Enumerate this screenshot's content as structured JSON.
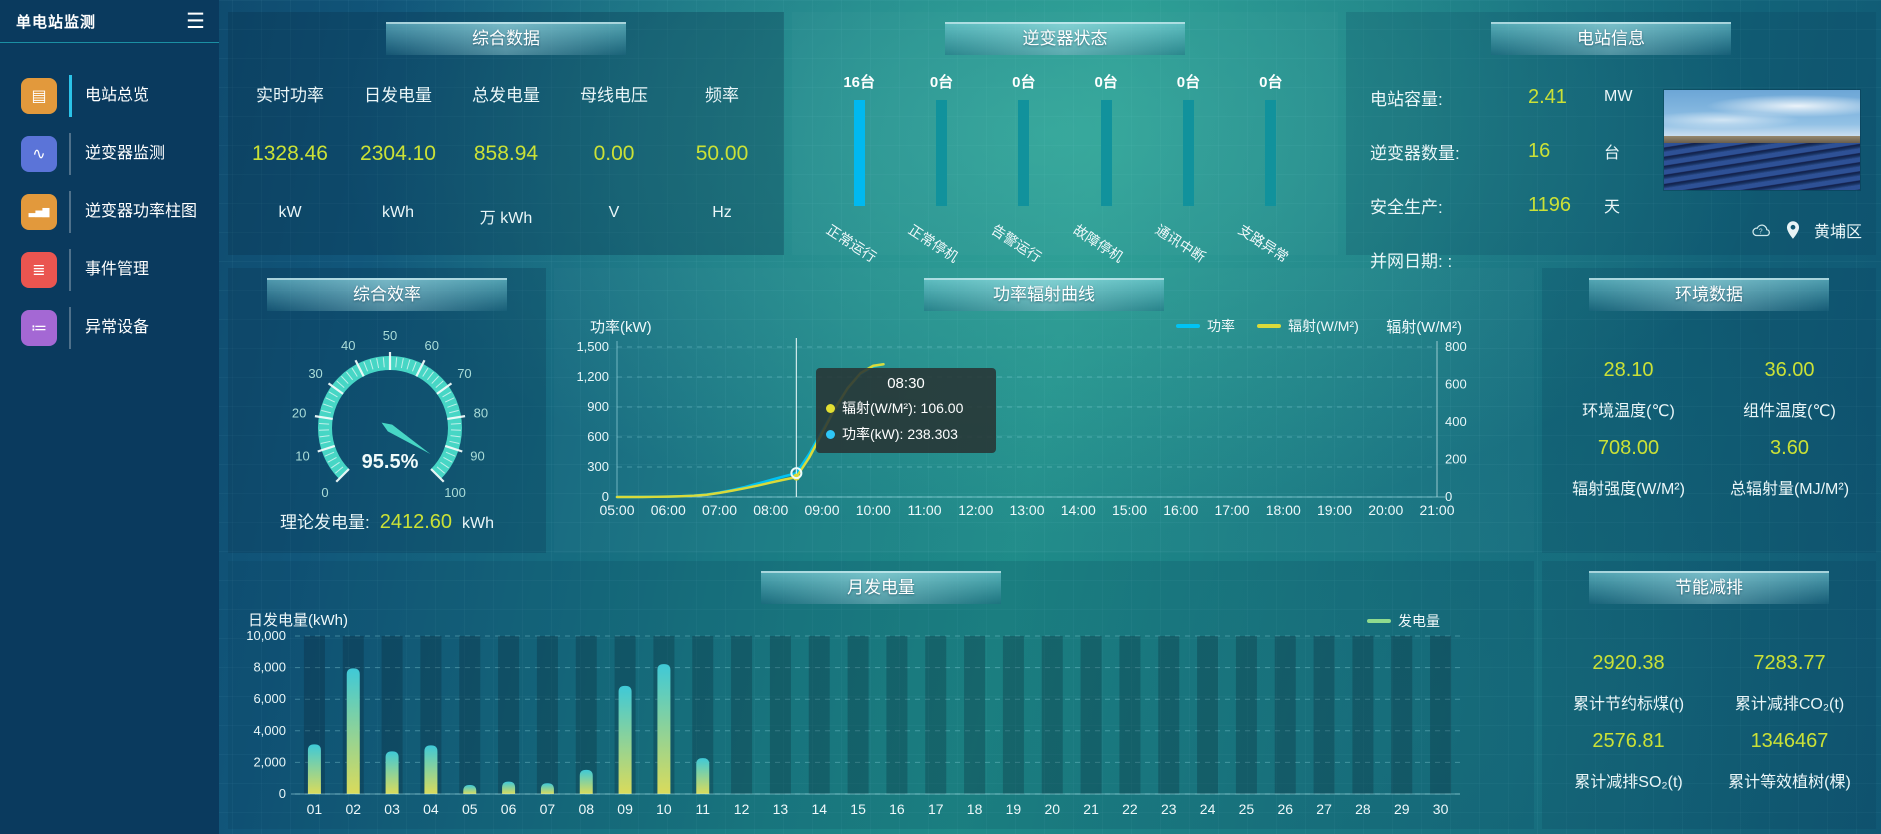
{
  "colors": {
    "accent_yellow": "#cbe136",
    "accent_cyan": "#00b9f0",
    "teal_bar": "#11929c",
    "gauge": "#47d6c5",
    "bar_top": "#3fc9d7",
    "bar_bottom": "#dadb5b",
    "legend_green": "#90db8e"
  },
  "sidebar": {
    "title": "单电站监测",
    "menu_icon": "☰",
    "items": [
      {
        "label": "电站总览",
        "glyph": "▤",
        "color": "#e2993c",
        "active": true
      },
      {
        "label": "逆变器监测",
        "glyph": "∿",
        "color": "#5b74d8",
        "active": false
      },
      {
        "label": "逆变器功率柱图",
        "glyph": "▃▅▇",
        "color": "#e2993c",
        "active": false
      },
      {
        "label": "事件管理",
        "glyph": "≣",
        "color": "#ea5550",
        "active": false
      },
      {
        "label": "异常设备",
        "glyph": "≔",
        "color": "#a468d4",
        "active": false
      }
    ]
  },
  "summary": {
    "title": "综合数据",
    "metrics": [
      {
        "label": "实时功率",
        "value": "1328.46",
        "unit": "kW"
      },
      {
        "label": "日发电量",
        "value": "2304.10",
        "unit": "kWh"
      },
      {
        "label": "总发电量",
        "value": "858.94",
        "unit": "万 kWh"
      },
      {
        "label": "母线电压",
        "value": "0.00",
        "unit": "V"
      },
      {
        "label": "频率",
        "value": "50.00",
        "unit": "Hz"
      }
    ]
  },
  "inverter_status": {
    "title": "逆变器状态",
    "items": [
      {
        "count": "16台",
        "label": "正常运行",
        "color": "#00b9f0"
      },
      {
        "count": "0台",
        "label": "正常停机",
        "color": "#11929c"
      },
      {
        "count": "0台",
        "label": "告警运行",
        "color": "#11929c"
      },
      {
        "count": "0台",
        "label": "故障停机",
        "color": "#11929c"
      },
      {
        "count": "0台",
        "label": "通讯中断",
        "color": "#11929c"
      },
      {
        "count": "0台",
        "label": "支路异常",
        "color": "#11929c"
      }
    ]
  },
  "station_info": {
    "title": "电站信息",
    "rows": [
      {
        "label": "电站容量:",
        "value": "2.41",
        "unit": "MW"
      },
      {
        "label": "逆变器数量:",
        "value": "16",
        "unit": "台"
      },
      {
        "label": "安全生产:",
        "value": "1196",
        "unit": "天"
      },
      {
        "label": "并网日期: :",
        "value": "",
        "unit": ""
      }
    ],
    "location": "黄埔区"
  },
  "efficiency": {
    "title": "综合效率",
    "theory_label": "理论发电量:",
    "theory_value": "2412.60",
    "theory_unit": "kWh"
  },
  "environment": {
    "title": "环境数据",
    "cells": [
      {
        "value": "28.10",
        "label": "环境温度(℃)"
      },
      {
        "value": "36.00",
        "label": "组件温度(℃)"
      },
      {
        "value": "708.00",
        "label": "辐射强度(W/M²)"
      },
      {
        "value": "3.60",
        "label": "总辐射量(MJ/M²)"
      }
    ]
  },
  "saving": {
    "title": "节能减排",
    "cells": [
      {
        "value": "2920.38",
        "label": "累计节约标煤(t)"
      },
      {
        "value": "7283.77",
        "label": "累计减排CO₂(t)"
      },
      {
        "value": "2576.81",
        "label": "累计减排SO₂(t)"
      },
      {
        "value": "1346467",
        "label": "累计等效植树(棵)"
      }
    ]
  },
  "chart_data": [
    {
      "id": "efficiency-gauge",
      "type": "gauge",
      "title": "综合效率",
      "min": 0,
      "max": 100,
      "value": 95.5,
      "label": "95.5%",
      "tick_labels": [
        0,
        10,
        20,
        30,
        40,
        50,
        60,
        70,
        80,
        90,
        100
      ],
      "color": "#47d6c5"
    },
    {
      "id": "power-radiation",
      "type": "line",
      "title": "功率辐射曲线",
      "x_range": [
        5,
        21
      ],
      "x_ticks": [
        "05:00",
        "06:00",
        "07:00",
        "08:00",
        "09:00",
        "10:00",
        "11:00",
        "12:00",
        "13:00",
        "14:00",
        "15:00",
        "16:00",
        "17:00",
        "18:00",
        "19:00",
        "20:00",
        "21:00"
      ],
      "left_axis": {
        "label": "功率(kW)",
        "min": 0,
        "max": 1500,
        "ticks": [
          "1,500",
          "1,200",
          "900",
          "600",
          "300",
          "0"
        ]
      },
      "right_axis": {
        "label": "辐射(W/M²)",
        "min": 0,
        "max": 800,
        "ticks": [
          "800",
          "600",
          "400",
          "200",
          "0"
        ]
      },
      "legend": [
        {
          "name": "功率",
          "color": "#00c3f4"
        },
        {
          "name": "辐射(W/M²)",
          "color": "#d9da3a"
        }
      ],
      "series": [
        {
          "name": "功率",
          "color": "#00c3f4",
          "axis": "left",
          "points": [
            [
              5,
              0
            ],
            [
              5.25,
              0
            ],
            [
              5.5,
              1
            ],
            [
              5.75,
              2
            ],
            [
              6,
              4
            ],
            [
              6.25,
              8
            ],
            [
              6.5,
              14
            ],
            [
              6.75,
              25
            ],
            [
              7,
              45
            ],
            [
              7.25,
              70
            ],
            [
              7.5,
              100
            ],
            [
              7.75,
              135
            ],
            [
              8,
              170
            ],
            [
              8.25,
              205
            ],
            [
              8.5,
              238.3
            ],
            [
              8.75,
              430
            ],
            [
              9,
              660
            ],
            [
              9.25,
              890
            ],
            [
              9.5,
              1090
            ],
            [
              9.75,
              1230
            ],
            [
              10,
              1305
            ],
            [
              10.2,
              1328.5
            ]
          ]
        },
        {
          "name": "辐射(W/M²)",
          "color": "#d9da3a",
          "axis": "right",
          "points": [
            [
              5,
              0
            ],
            [
              5.25,
              0
            ],
            [
              5.5,
              0
            ],
            [
              5.75,
              1
            ],
            [
              6,
              2
            ],
            [
              6.25,
              4
            ],
            [
              6.5,
              7
            ],
            [
              6.75,
              12
            ],
            [
              7,
              22
            ],
            [
              7.25,
              34
            ],
            [
              7.5,
              47
            ],
            [
              7.75,
              61
            ],
            [
              8,
              77
            ],
            [
              8.25,
              92
            ],
            [
              8.5,
              106
            ],
            [
              8.75,
              210
            ],
            [
              9,
              340
            ],
            [
              9.25,
              470
            ],
            [
              9.5,
              580
            ],
            [
              9.75,
              660
            ],
            [
              10,
              700
            ],
            [
              10.2,
              708
            ]
          ]
        }
      ],
      "tooltip": {
        "x_hours": 8.5,
        "title": "08:30",
        "rows": [
          {
            "name": "辐射(W/M²)",
            "value": "106.00",
            "color": "#e3e032"
          },
          {
            "name": "功率(kW)",
            "value": "238.303",
            "color": "#2ec6f6"
          }
        ]
      }
    },
    {
      "id": "monthly-energy",
      "type": "bar",
      "title": "月发电量",
      "ylabel": "日发电量(kWh)",
      "legend": [
        {
          "name": "发电量",
          "color": "#90db8e"
        }
      ],
      "categories": [
        "01",
        "02",
        "03",
        "04",
        "05",
        "06",
        "07",
        "08",
        "09",
        "10",
        "11",
        "12",
        "13",
        "14",
        "15",
        "16",
        "17",
        "18",
        "19",
        "20",
        "21",
        "22",
        "23",
        "24",
        "25",
        "26",
        "27",
        "28",
        "29",
        "30"
      ],
      "values": [
        3140,
        7950,
        2700,
        3080,
        570,
        780,
        680,
        1530,
        6840,
        8220,
        2270,
        0,
        0,
        0,
        0,
        0,
        0,
        0,
        0,
        0,
        0,
        0,
        0,
        0,
        0,
        0,
        0,
        0,
        0,
        0
      ],
      "ylim": [
        0,
        10000
      ],
      "yticks": [
        "10,000",
        "8,000",
        "6,000",
        "4,000",
        "2,000",
        "0"
      ]
    }
  ]
}
